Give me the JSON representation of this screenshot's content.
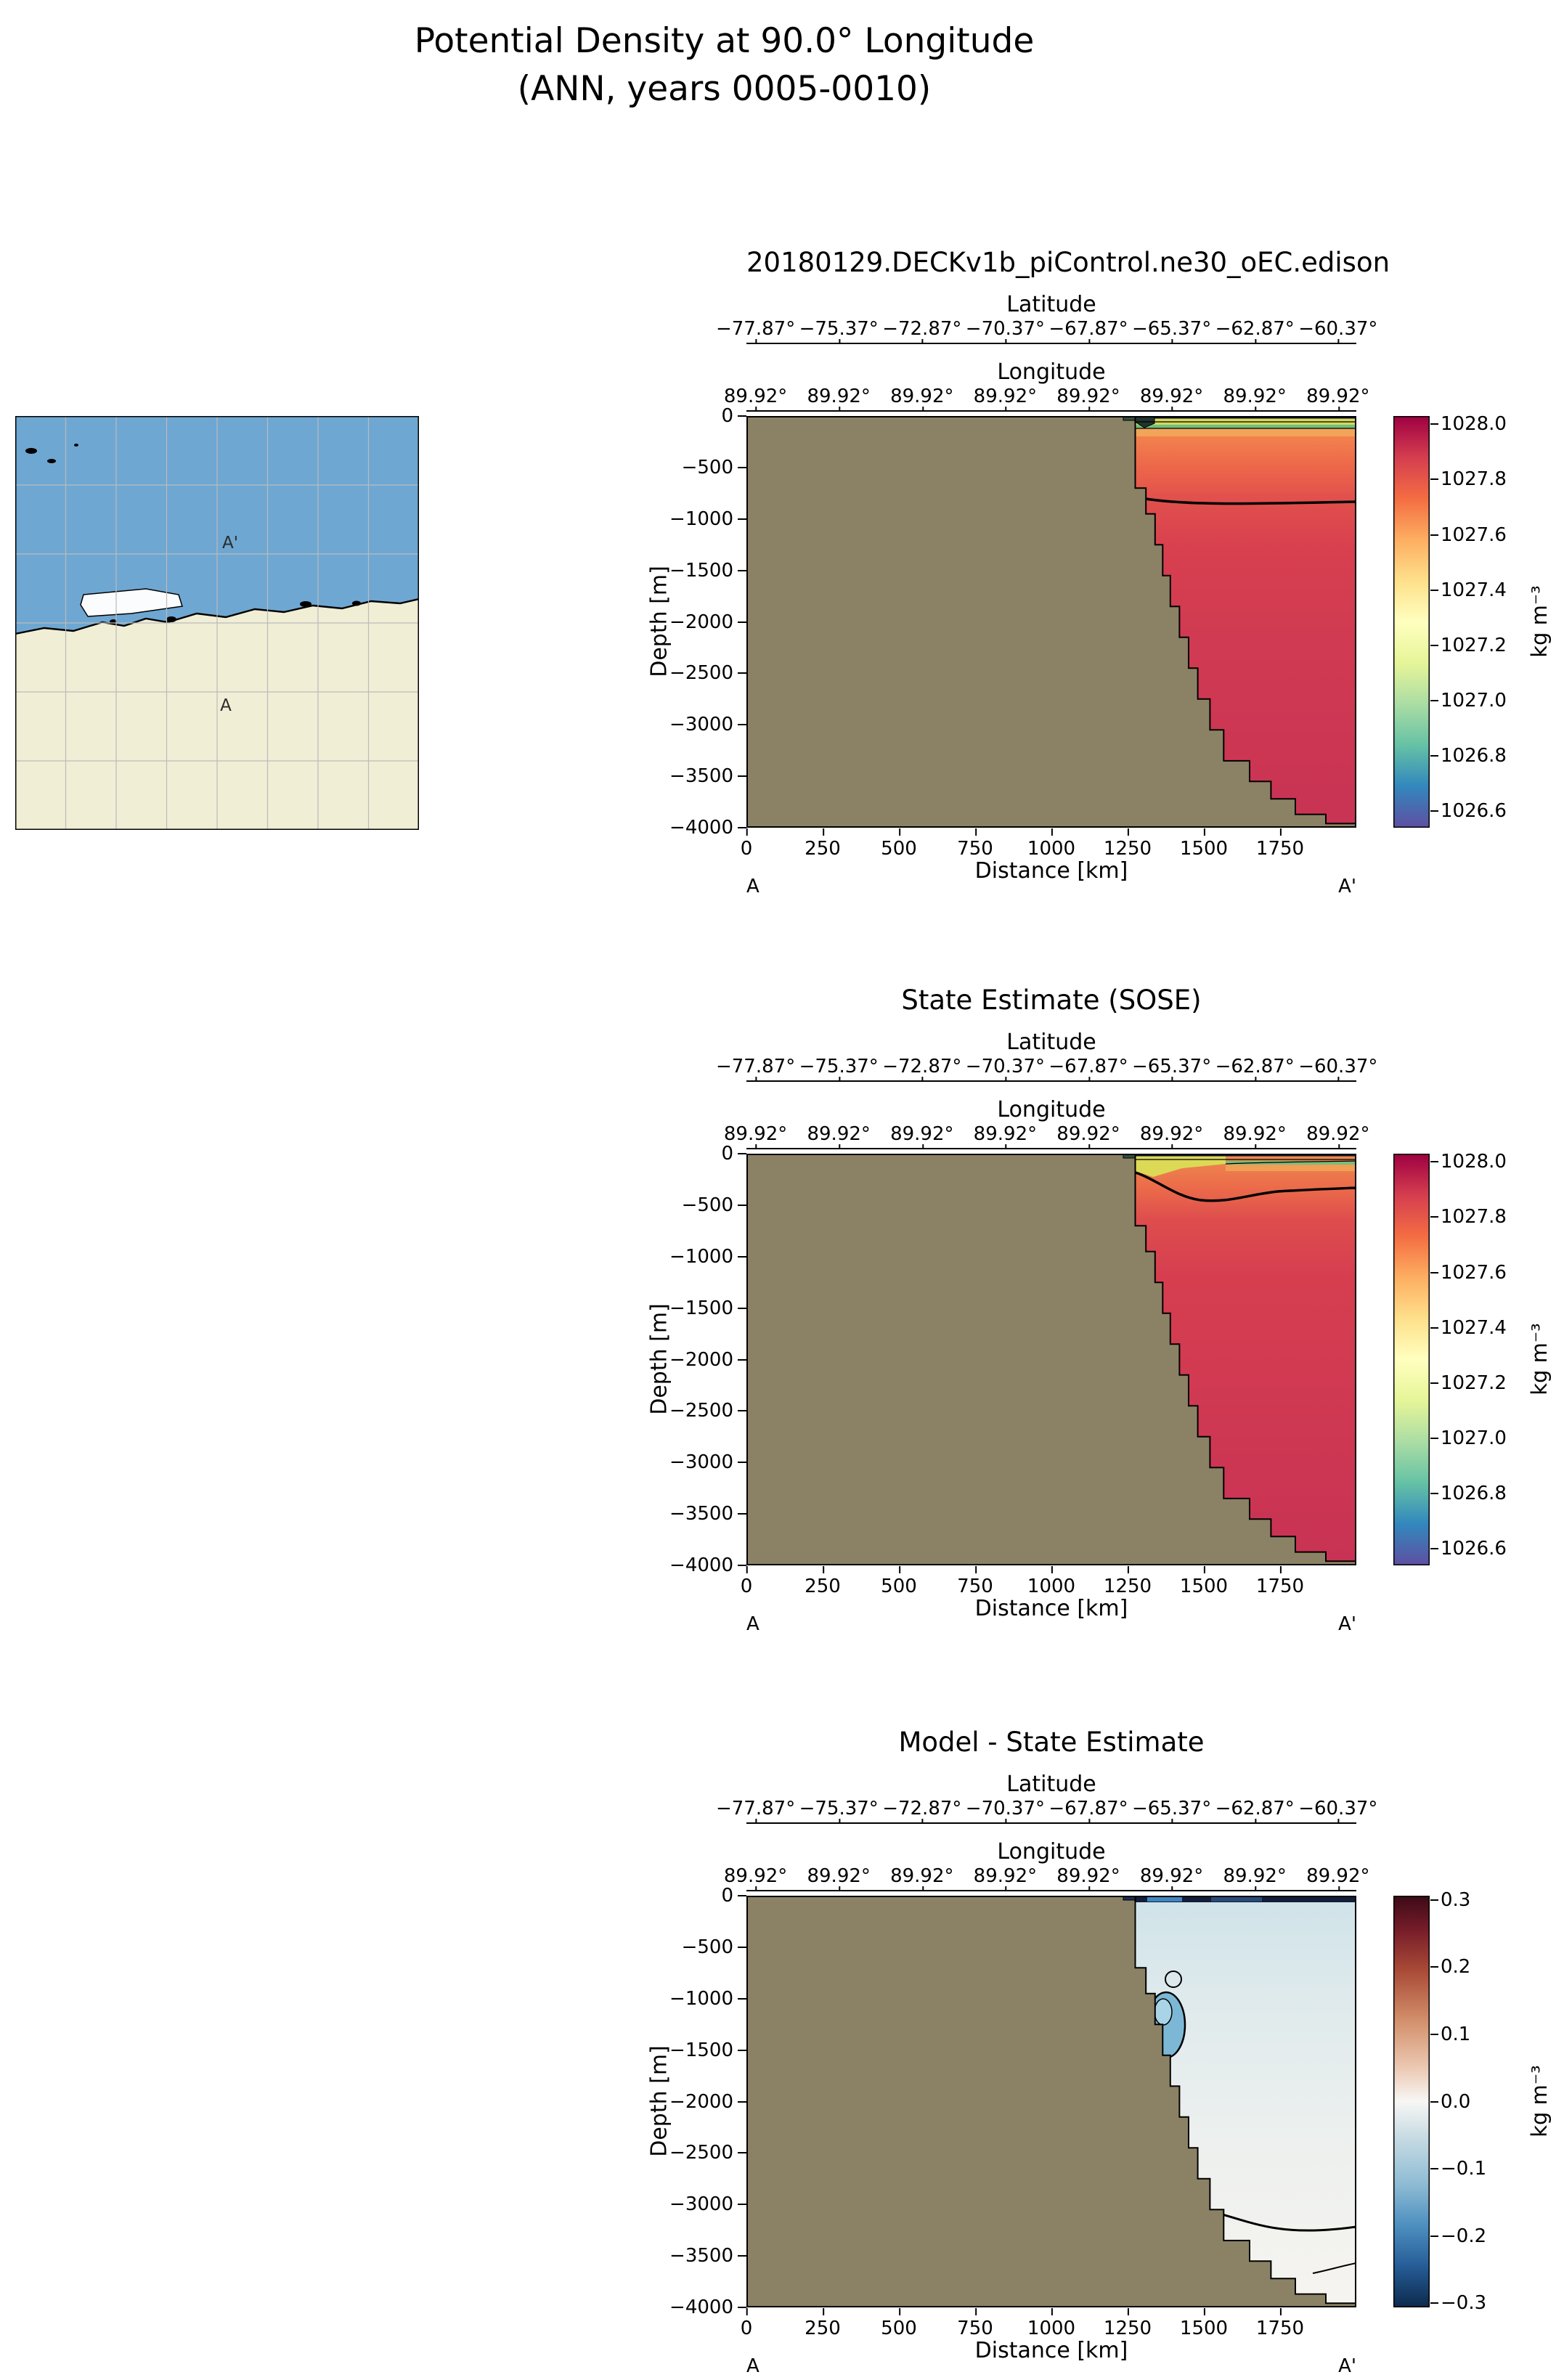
{
  "figure": {
    "title_line1": "Potential Density at 90.0° Longitude",
    "title_line2": "(ANN, years 0005-0010)"
  },
  "map_inset": {
    "label_a_prime": "A'",
    "label_a": "A"
  },
  "panels": [
    {
      "title": "20180129.DECKv1b_piControl.ne30_oEC.edison",
      "top_axis_1": {
        "label": "Latitude",
        "ticks": [
          "−77.87°",
          "−75.37°",
          "−72.87°",
          "−70.37°",
          "−67.87°",
          "−65.37°",
          "−62.87°",
          "−60.37°"
        ]
      },
      "top_axis_2": {
        "label": "Longitude",
        "ticks": [
          "89.92°",
          "89.92°",
          "89.92°",
          "89.92°",
          "89.92°",
          "89.92°",
          "89.92°",
          "89.92°"
        ]
      },
      "y_axis": {
        "label": "Depth [m]",
        "ticks": [
          "0",
          "−500",
          "−1000",
          "−1500",
          "−2000",
          "−2500",
          "−3000",
          "−3500",
          "−4000"
        ]
      },
      "x_axis": {
        "label": "Distance [km]",
        "ticks": [
          "0",
          "250",
          "500",
          "750",
          "1000",
          "1250",
          "1500",
          "1750"
        ]
      },
      "section_start": "A",
      "section_end": "A'",
      "colorbar": {
        "label": "kg m⁻³",
        "ticks": [
          "1028.0",
          "1027.8",
          "1027.6",
          "1027.4",
          "1027.2",
          "1027.0",
          "1026.8",
          "1026.6"
        ]
      }
    },
    {
      "title": "State Estimate (SOSE)",
      "top_axis_1": {
        "label": "Latitude",
        "ticks": [
          "−77.87°",
          "−75.37°",
          "−72.87°",
          "−70.37°",
          "−67.87°",
          "−65.37°",
          "−62.87°",
          "−60.37°"
        ]
      },
      "top_axis_2": {
        "label": "Longitude",
        "ticks": [
          "89.92°",
          "89.92°",
          "89.92°",
          "89.92°",
          "89.92°",
          "89.92°",
          "89.92°",
          "89.92°"
        ]
      },
      "y_axis": {
        "label": "Depth [m]",
        "ticks": [
          "0",
          "−500",
          "−1000",
          "−1500",
          "−2000",
          "−2500",
          "−3000",
          "−3500",
          "−4000"
        ]
      },
      "x_axis": {
        "label": "Distance [km]",
        "ticks": [
          "0",
          "250",
          "500",
          "750",
          "1000",
          "1250",
          "1500",
          "1750"
        ]
      },
      "section_start": "A",
      "section_end": "A'",
      "colorbar": {
        "label": "kg m⁻³",
        "ticks": [
          "1028.0",
          "1027.8",
          "1027.6",
          "1027.4",
          "1027.2",
          "1027.0",
          "1026.8",
          "1026.6"
        ]
      }
    },
    {
      "title": "Model - State Estimate",
      "top_axis_1": {
        "label": "Latitude",
        "ticks": [
          "−77.87°",
          "−75.37°",
          "−72.87°",
          "−70.37°",
          "−67.87°",
          "−65.37°",
          "−62.87°",
          "−60.37°"
        ]
      },
      "top_axis_2": {
        "label": "Longitude",
        "ticks": [
          "89.92°",
          "89.92°",
          "89.92°",
          "89.92°",
          "89.92°",
          "89.92°",
          "89.92°",
          "89.92°"
        ]
      },
      "y_axis": {
        "label": "Depth [m]",
        "ticks": [
          "0",
          "−500",
          "−1000",
          "−1500",
          "−2000",
          "−2500",
          "−3000",
          "−3500",
          "−4000"
        ]
      },
      "x_axis": {
        "label": "Distance [km]",
        "ticks": [
          "0",
          "250",
          "500",
          "750",
          "1000",
          "1250",
          "1500",
          "1750"
        ]
      },
      "section_start": "A",
      "section_end": "A'",
      "colorbar": {
        "label": "kg m⁻³",
        "ticks": [
          "0.3",
          "0.2",
          "0.1",
          "0.0",
          "−0.1",
          "−0.2",
          "−0.3"
        ]
      }
    }
  ],
  "transect": {
    "start": "A",
    "end": "A'",
    "longitude": "90.0° E"
  },
  "chart_data": [
    {
      "type": "heatmap",
      "title": "20180129.DECKv1b_piControl.ne30_oEC.edison",
      "variable": "Potential Density",
      "units": "kg m⁻³",
      "xlabel": "Distance [km]",
      "ylabel": "Depth [m]",
      "xlim": [
        0,
        2000
      ],
      "ylim": [
        -4000,
        0
      ],
      "x_ticks_km": [
        0,
        250,
        500,
        750,
        1000,
        1250,
        1500,
        1750
      ],
      "y_ticks_m": [
        0,
        -500,
        -1000,
        -1500,
        -2000,
        -2500,
        -3000,
        -3500,
        -4000
      ],
      "top_axis_latitude_deg": [
        -77.87,
        -75.37,
        -72.87,
        -70.37,
        -67.87,
        -65.37,
        -62.87,
        -60.37
      ],
      "top_axis_longitude_deg": [
        89.92,
        89.92,
        89.92,
        89.92,
        89.92,
        89.92,
        89.92,
        89.92
      ],
      "colormap": "Spectral_r",
      "color_range": [
        1026.5,
        1028.0
      ],
      "colorbar_ticks": [
        1028.0,
        1027.8,
        1027.6,
        1027.4,
        1027.2,
        1027.0,
        1026.8,
        1026.6
      ],
      "land_mask_note": "solid tan region: Antarctic continent/seafloor; ocean data only for distance ≳ 1275 km",
      "bathymetry_profile_km_m": [
        [
          1275,
          0
        ],
        [
          1275,
          -700
        ],
        [
          1310,
          -700
        ],
        [
          1310,
          -950
        ],
        [
          1340,
          -950
        ],
        [
          1340,
          -1250
        ],
        [
          1365,
          -1250
        ],
        [
          1365,
          -1550
        ],
        [
          1390,
          -1550
        ],
        [
          1390,
          -1850
        ],
        [
          1420,
          -1850
        ],
        [
          1420,
          -2150
        ],
        [
          1450,
          -2150
        ],
        [
          1450,
          -2450
        ],
        [
          1480,
          -2450
        ],
        [
          1480,
          -2750
        ],
        [
          1520,
          -2750
        ],
        [
          1520,
          -3050
        ],
        [
          1565,
          -3050
        ],
        [
          1565,
          -3350
        ],
        [
          1650,
          -3350
        ],
        [
          1650,
          -3550
        ],
        [
          1720,
          -3550
        ],
        [
          1720,
          -3720
        ],
        [
          1800,
          -3720
        ],
        [
          1800,
          -3870
        ],
        [
          1900,
          -3870
        ],
        [
          1900,
          -3960
        ],
        [
          2000,
          -3960
        ]
      ],
      "field_estimate": [
        {
          "depth_range_m": [
            0,
            -100
          ],
          "density_kg_m3": "1026.6–1027.4 thin stratified surface layer (yellow/green bands)"
        },
        {
          "depth_range_m": [
            -100,
            -900
          ],
          "density_kg_m3": "1027.5–1027.7 (orange)"
        },
        {
          "depth_range_m": [
            -900,
            -4000
          ],
          "density_kg_m3": "1027.75–1027.9 (red/crimson)"
        }
      ],
      "contour_feature": "bold isopycnal contour nearly horizontal at ≈ −900 m"
    },
    {
      "type": "heatmap",
      "title": "State Estimate (SOSE)",
      "variable": "Potential Density",
      "units": "kg m⁻³",
      "xlabel": "Distance [km]",
      "ylabel": "Depth [m]",
      "xlim": [
        0,
        2000
      ],
      "ylim": [
        -4000,
        0
      ],
      "colormap": "Spectral_r",
      "color_range": [
        1026.5,
        1028.0
      ],
      "colorbar_ticks": [
        1028.0,
        1027.8,
        1027.6,
        1027.4,
        1027.2,
        1027.0,
        1026.8,
        1026.6
      ],
      "field_estimate": [
        {
          "depth_range_m": [
            0,
            -50
          ],
          "density_kg_m3": "1026.6–1027.3 very thin surface layer (yellow wedge thicker near shelf)"
        },
        {
          "depth_range_m": [
            -50,
            -350
          ],
          "density_kg_m3": "1027.4–1027.7"
        },
        {
          "depth_range_m": [
            -350,
            -4000
          ],
          "density_kg_m3": "1027.75–1027.9"
        }
      ],
      "contour_feature": "bold isopycnal contour dips to ≈ −420 m near 1500 km then levels at ≈ −350 m"
    },
    {
      "type": "heatmap",
      "title": "Model - State Estimate",
      "variable": "Potential Density difference",
      "units": "kg m⁻³",
      "xlabel": "Distance [km]",
      "ylabel": "Depth [m]",
      "xlim": [
        0,
        2000
      ],
      "ylim": [
        -4000,
        0
      ],
      "colormap": "balance (diverging blue-white-red)",
      "color_range": [
        -0.3,
        0.3
      ],
      "colorbar_ticks": [
        0.3,
        0.2,
        0.1,
        0.0,
        -0.1,
        -0.2,
        -0.3
      ],
      "field_estimate": [
        {
          "region": "surface band 0 to −50 m",
          "difference_kg_m3": "−0.2 to −0.3 (dark blue/navy)"
        },
        {
          "region": "≈1330–1430 km, −1000 to −1550 m",
          "difference_kg_m3": "≈ −0.1 to −0.15 (blue blob with bold outline)"
        },
        {
          "region": "upper ocean above ≈ −2000 m",
          "difference_kg_m3": "−0.05 to 0 (pale blue)"
        },
        {
          "region": "deep ocean below ≈ −3000 m",
          "difference_kg_m3": "0 to +0.05 (near white)"
        }
      ],
      "contour_feature": "zero-difference contour from ≈(1480 km, −2870 m) to right edge at ≈ −3250 m"
    }
  ]
}
